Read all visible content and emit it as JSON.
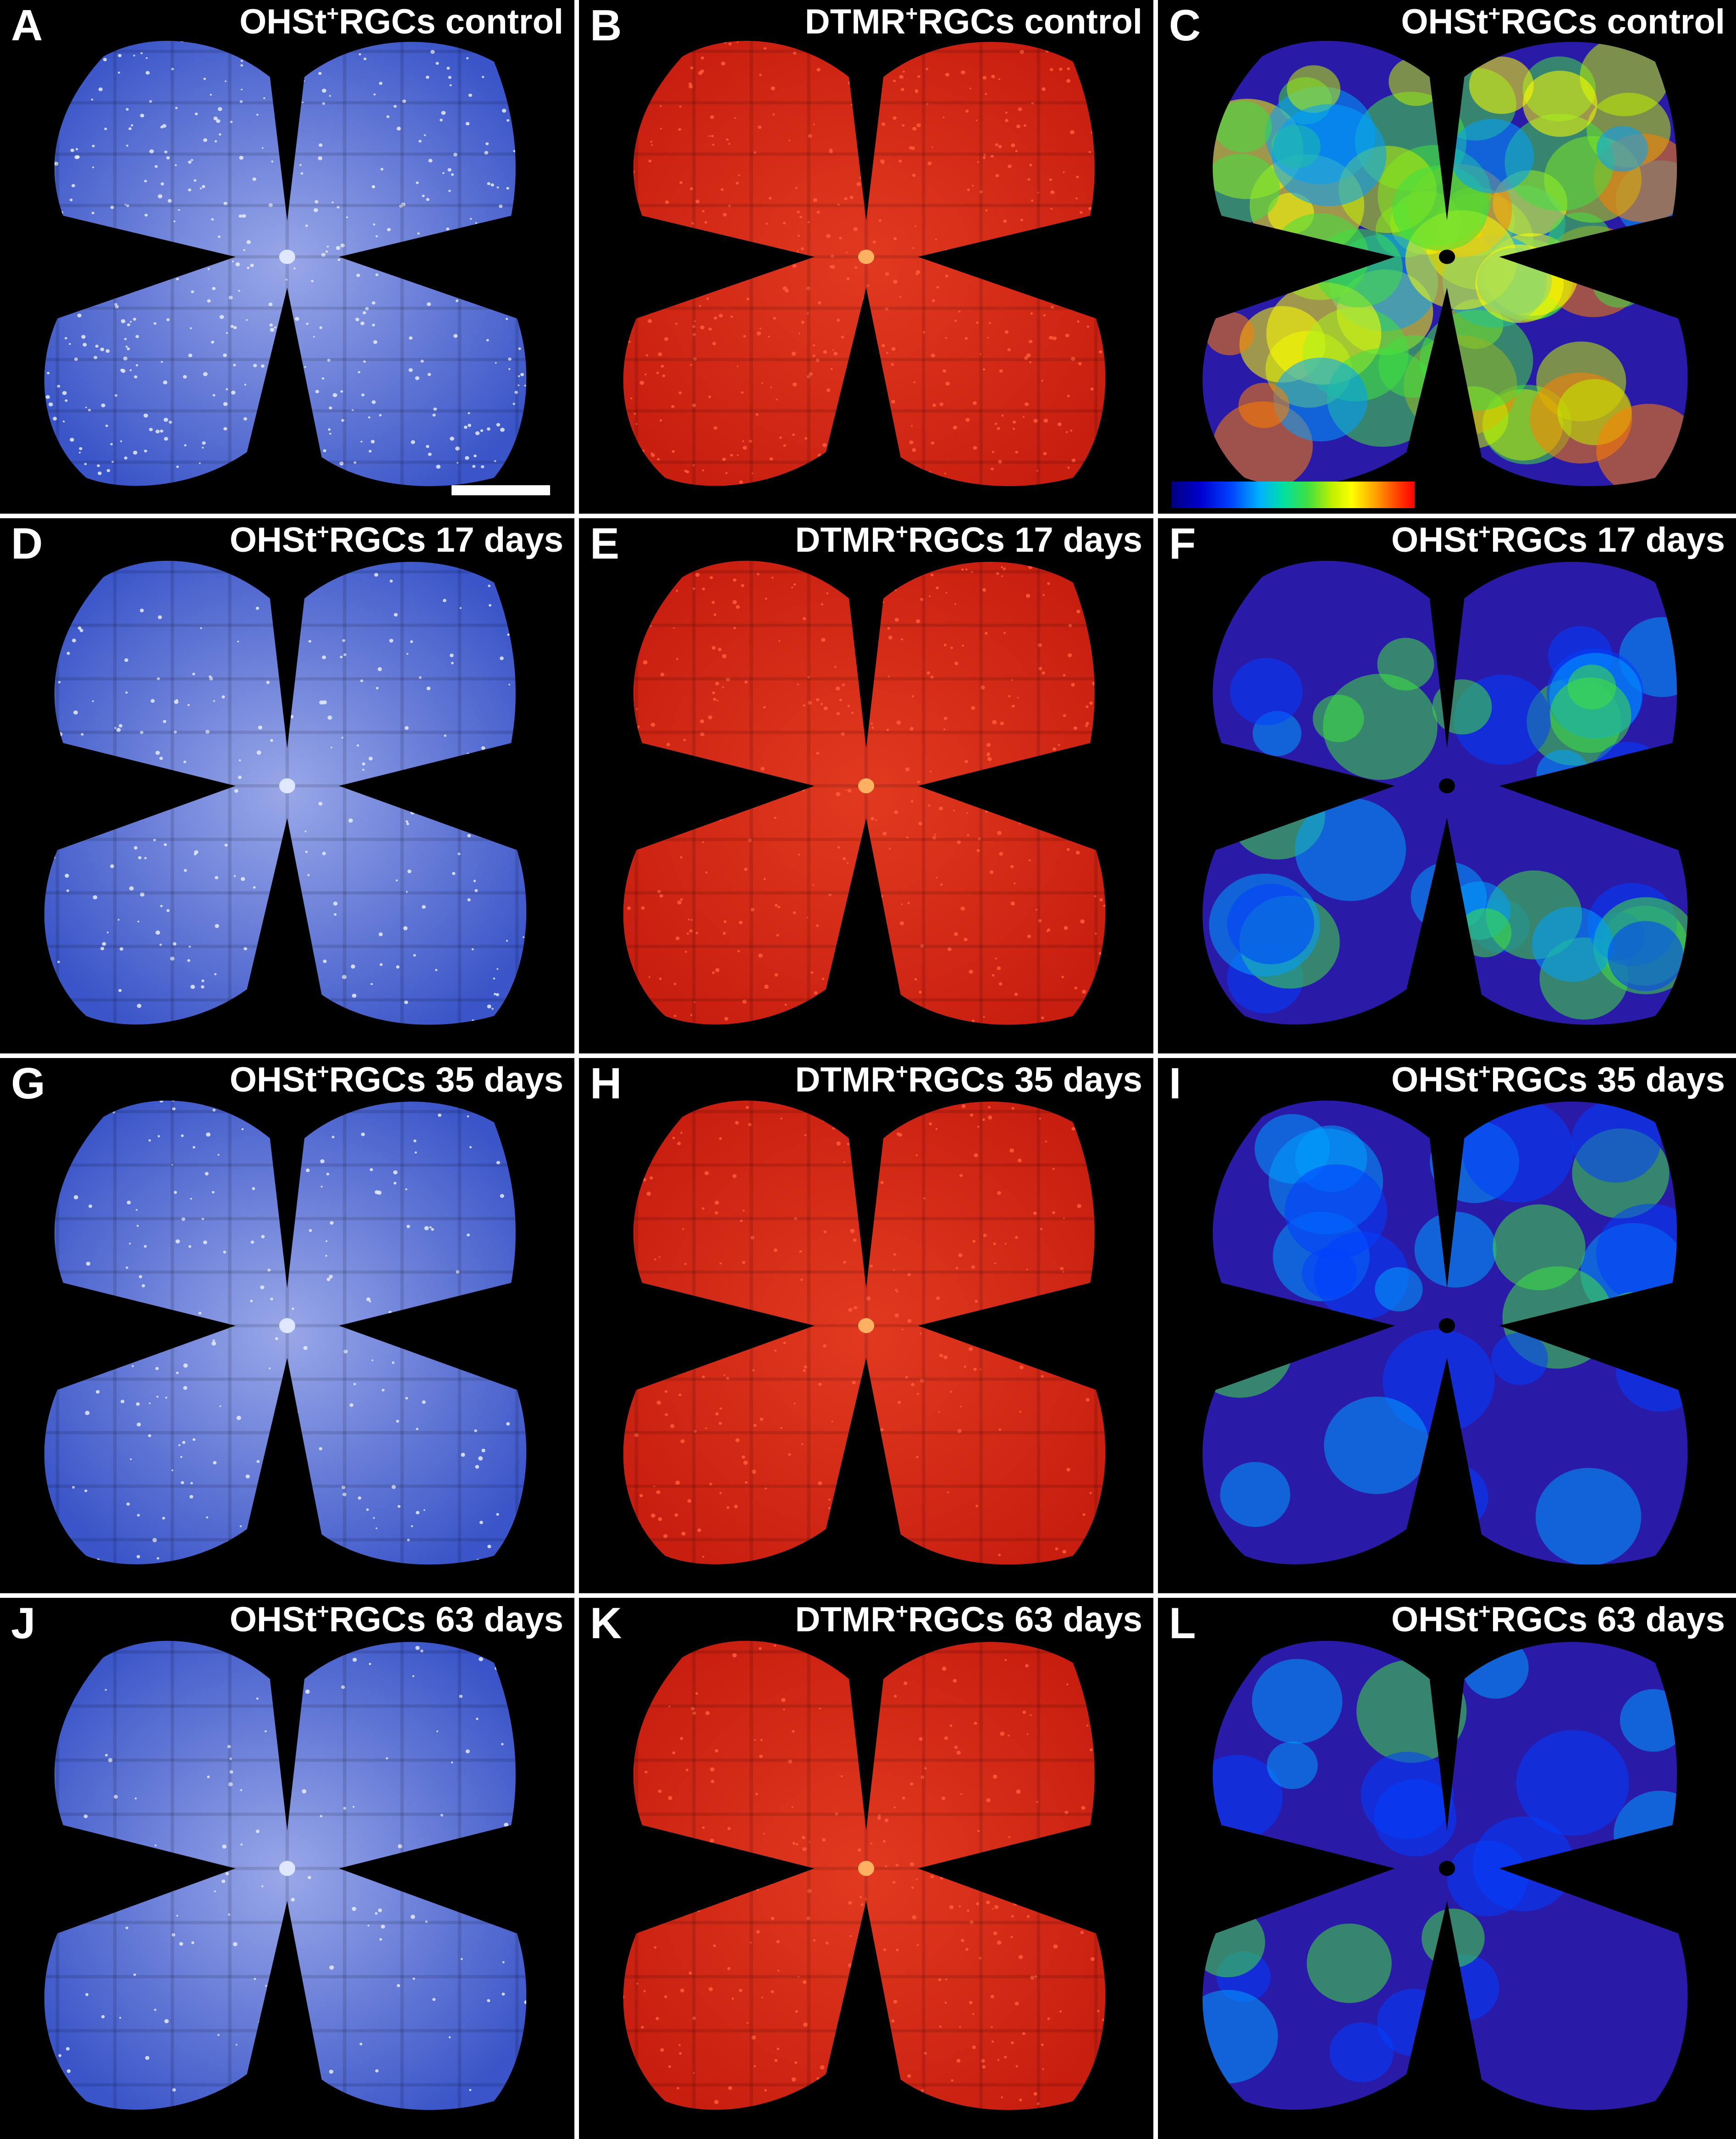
{
  "figure": {
    "panels": [
      {
        "letter": "A",
        "title_pre": "OHSt",
        "title_sup": "+",
        "title_post": "RGCs control",
        "style": "blue",
        "level": 1.0
      },
      {
        "letter": "B",
        "title_pre": "DTMR",
        "title_sup": "+",
        "title_post": "RGCs control",
        "style": "red",
        "level": 1.0
      },
      {
        "letter": "C",
        "title_pre": "OHSt",
        "title_sup": "+",
        "title_post": "RGCs control",
        "style": "heat",
        "level": 1.0
      },
      {
        "letter": "D",
        "title_pre": "OHSt",
        "title_sup": "+",
        "title_post": "RGCs 17 days",
        "style": "blue",
        "level": 0.45
      },
      {
        "letter": "E",
        "title_pre": "DTMR",
        "title_sup": "+",
        "title_post": "RGCs 17 days",
        "style": "red",
        "level": 0.75
      },
      {
        "letter": "F",
        "title_pre": "OHSt",
        "title_sup": "+",
        "title_post": "RGCs 17 days",
        "style": "heat",
        "level": 0.45
      },
      {
        "letter": "G",
        "title_pre": "OHSt",
        "title_sup": "+",
        "title_post": "RGCs 35 days",
        "style": "blue",
        "level": 0.4
      },
      {
        "letter": "H",
        "title_pre": "DTMR",
        "title_sup": "+",
        "title_post": "RGCs 35 days",
        "style": "red",
        "level": 0.5
      },
      {
        "letter": "I",
        "title_pre": "OHSt",
        "title_sup": "+",
        "title_post": "RGCs 35 days",
        "style": "heat",
        "level": 0.3
      },
      {
        "letter": "J",
        "title_pre": "OHSt",
        "title_sup": "+",
        "title_post": "RGCs 63 days",
        "style": "blue",
        "level": 0.2
      },
      {
        "letter": "K",
        "title_pre": "DTMR",
        "title_sup": "+",
        "title_post": "RGCs 63 days",
        "style": "red",
        "level": 0.6
      },
      {
        "letter": "L",
        "title_pre": "OHSt",
        "title_sup": "+",
        "title_post": "RGCs 63 days",
        "style": "heat",
        "level": 0.2
      }
    ],
    "colors": {
      "background": "#000000",
      "separator": "#ffffff",
      "label_text": "#ffffff",
      "blue_tissue": "#3a55c8",
      "blue_tissue_bright": "#9aa8e8",
      "red_tissue": "#c81e10",
      "heat_base": "#2a1aa8",
      "heat_scale": [
        "#000080",
        "#0040ff",
        "#00b0ff",
        "#40e040",
        "#ffff00",
        "#ff4000",
        "#ff0000"
      ]
    },
    "scale_bar": {
      "shown": true,
      "panel": "A"
    },
    "color_bar": {
      "shown": true,
      "panel": "C"
    }
  }
}
